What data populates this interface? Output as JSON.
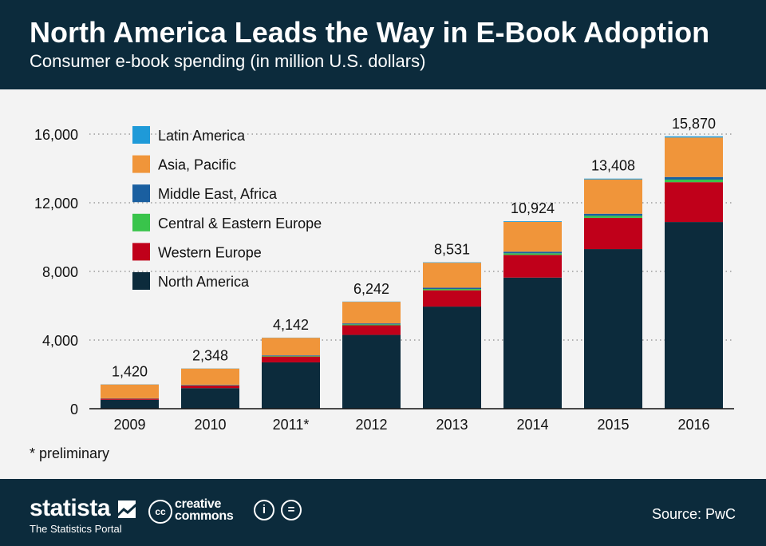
{
  "header": {
    "title": "North America Leads the Way in E-Book Adoption",
    "subtitle": "Consumer e-book spending (in million U.S. dollars)"
  },
  "footnote": "* preliminary",
  "footer": {
    "brand": "statista",
    "tagline": "The Statistics Portal",
    "cc_line1": "creative",
    "cc_line2": "commons",
    "cc_badge": "cc",
    "attribution_icon": "i",
    "noderivs_icon": "=",
    "source": "Source: PwC"
  },
  "colors": {
    "header_bg": "#0c2b3c",
    "plot_bg": "#f3f3f3"
  },
  "chart_data": {
    "type": "bar",
    "stacked": true,
    "title": "North America Leads the Way in E-Book Adoption",
    "subtitle": "Consumer e-book spending (in million U.S. dollars)",
    "categories": [
      "2009",
      "2010",
      "2011*",
      "2012",
      "2013",
      "2014",
      "2015",
      "2016"
    ],
    "totals": [
      1420,
      2348,
      4142,
      6242,
      8531,
      10924,
      13408,
      15870
    ],
    "total_labels": [
      "1,420",
      "2,348",
      "4,142",
      "6,242",
      "8,531",
      "10,924",
      "13,408",
      "15,870"
    ],
    "series": [
      {
        "name": "North America",
        "color": "#0c2b3c",
        "values": [
          520,
          1200,
          2700,
          4300,
          5950,
          7640,
          9300,
          10880
        ]
      },
      {
        "name": "Western Europe",
        "color": "#c0001a",
        "values": [
          70,
          160,
          340,
          560,
          950,
          1320,
          1820,
          2320
        ]
      },
      {
        "name": "Central & Eastern Europe",
        "color": "#39c44b",
        "values": [
          10,
          20,
          35,
          55,
          75,
          95,
          120,
          150
        ]
      },
      {
        "name": "Middle East, Africa",
        "color": "#1a5fa0",
        "values": [
          10,
          20,
          35,
          55,
          75,
          95,
          120,
          150
        ]
      },
      {
        "name": "Asia, Pacific",
        "color": "#f0953a",
        "values": [
          800,
          938,
          1022,
          1257,
          1456,
          1734,
          1998,
          2300
        ]
      },
      {
        "name": "Latin America",
        "color": "#1f9ad8",
        "values": [
          10,
          10,
          10,
          15,
          25,
          40,
          50,
          70
        ]
      }
    ],
    "legend_order": [
      "Latin America",
      "Asia, Pacific",
      "Middle East, Africa",
      "Central & Eastern Europe",
      "Western Europe",
      "North America"
    ],
    "legend_position": "top-left",
    "yticks": [
      0,
      4000,
      8000,
      12000,
      16000
    ],
    "ytick_labels": [
      "0",
      "4,000",
      "8,000",
      "12,000",
      "16,000"
    ],
    "ylim": [
      0,
      16000
    ],
    "grid": true,
    "xlabel": "",
    "ylabel": ""
  }
}
